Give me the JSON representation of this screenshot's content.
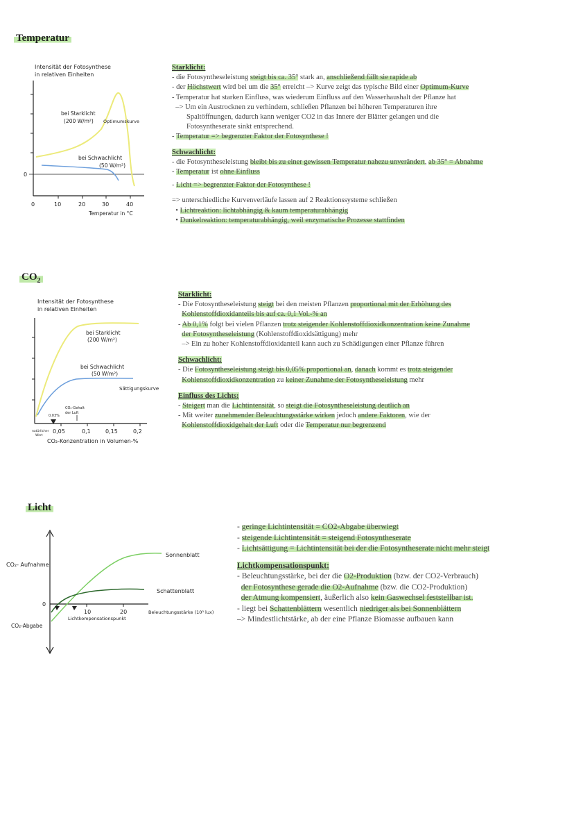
{
  "sections": {
    "temperature": {
      "heading": "Temperatur",
      "graph": {
        "ylabel_1": "Intensität der Fotosynthese",
        "ylabel_2": "in relativen Einheiten",
        "xlabel": "Temperatur in °C",
        "ticks": [
          "0",
          "10",
          "20",
          "30",
          "40"
        ],
        "zero": "0",
        "label_strong_1": "bei Starklicht",
        "label_strong_2": "(200 W/m²)",
        "label_optimum": "Optimumskurve",
        "label_weak_1": "bei Schwachlicht",
        "label_weak_2": "(50 W/m²)"
      },
      "notes": {
        "starklicht_title": "Starklicht:",
        "l1": [
          {
            "t": "- die Fotosyntheseleistung "
          },
          {
            "t": "steigt bis ca. 35°",
            "h": 1
          },
          {
            "t": " stark an, "
          },
          {
            "t": "anschließend fällt sie rapide ab",
            "h": 1
          }
        ],
        "l2": [
          {
            "t": "- der "
          },
          {
            "t": "Höchstwert",
            "h": 1
          },
          {
            "t": " wird bei um die "
          },
          {
            "t": "35°",
            "h": 1
          },
          {
            "t": " erreicht –> Kurve zeigt das typische Bild einer "
          },
          {
            "t": "Optimum-Kurve",
            "h": 1
          }
        ],
        "l3": [
          {
            "t": "- Temperatur hat starken Einfluss, was wiederum Einfluss auf den Wasserhaushalt der Pflanze hat"
          }
        ],
        "l4": [
          {
            "t": "  –> Um ein Austrocknen zu verhindern, schließen Pflanzen bei höheren Temperaturen ihre"
          }
        ],
        "l5": [
          {
            "t": "        Spaltöffnungen, dadurch kann weniger CO2 in das Innere der Blätter gelangen und die"
          }
        ],
        "l6": [
          {
            "t": "        Fotosyntheserate sinkt entsprechend."
          }
        ],
        "l7": [
          {
            "t": "- "
          },
          {
            "t": "Temperatur => begrenzter Faktor der Fotosynthese !",
            "h": 1
          }
        ],
        "schwachlicht_title": "Schwachlicht:",
        "l8": [
          {
            "t": "- die Fotosyntheseleistung "
          },
          {
            "t": "bleibt bis zu einer gewissen Temperatur nahezu unverändert",
            "h": 1
          },
          {
            "t": ", "
          },
          {
            "t": "ab 35° = Abnahme",
            "h": 1
          }
        ],
        "l9": [
          {
            "t": "- "
          },
          {
            "t": "Temperatur",
            "h": 1
          },
          {
            "t": " ist "
          },
          {
            "t": "ohne Einfluss",
            "h": 1
          }
        ],
        "l10": [
          {
            "t": "- "
          },
          {
            "t": "Licht => begrenzter Faktor der Fotosynthese !",
            "h": 1
          }
        ],
        "l11": [
          {
            "t": "=> unterschiedliche Kurvenverläufe lassen auf 2 Reaktionssysteme schließen"
          }
        ],
        "l12": [
          {
            "t": "  • "
          },
          {
            "t": "Lichtreaktion: lichtabhängig & kaum temperaturabhängig",
            "h": 1
          }
        ],
        "l13": [
          {
            "t": "  • "
          },
          {
            "t": "Dunkelreaktion: temperaturabhängig, weil enzymatische Prozesse stattfinden",
            "h": 1
          }
        ]
      }
    },
    "co2": {
      "heading": "CO",
      "heading_sub": "2",
      "graph": {
        "ylabel_1": "Intensität der Fotosynthese",
        "ylabel_2": "in relativen Einheiten",
        "xlabel": "CO₂-Konzentration in Volumen-%",
        "ticks": [
          "0,05",
          "0,1",
          "0,15",
          "0,2"
        ],
        "label_natural_1": "natürlicher",
        "label_natural_2": "Wert",
        "label_003": "0,03%",
        "label_co2air_1": "CO₂-Gehalt",
        "label_co2air_2": "der Luft",
        "label_strong_1": "bei Starklicht",
        "label_strong_2": "(200 W/m²)",
        "label_weak_1": "bei Schwachlicht",
        "label_weak_2": "(50 W/m²)",
        "label_saturation": "Sättigungskurve"
      },
      "notes": {
        "starklicht_title": "Starklicht:",
        "l1": [
          {
            "t": "- Die Fotosyntheseleistung "
          },
          {
            "t": "steigt",
            "h": 1
          },
          {
            "t": " bei den meisten Pflanzen "
          },
          {
            "t": "proportional mit der Erhöhung des",
            "h": 1
          }
        ],
        "l2": [
          {
            "t": "  "
          },
          {
            "t": "Kohlenstoffdioxidanteils bis auf ca. 0,1 Vol.-% an",
            "h": 1
          }
        ],
        "l3": [
          {
            "t": "- "
          },
          {
            "t": "Ab 0,1%",
            "h": 1
          },
          {
            "t": " folgt bei vielen Pflanzen "
          },
          {
            "t": "trotz steigender Kohlenstoffdioxidkonzentration keine Zunahme",
            "h": 1
          }
        ],
        "l4": [
          {
            "t": "  "
          },
          {
            "t": "der Fotosyntheseleistung",
            "h": 1
          },
          {
            "t": " (Kohlenstoffdioxidsättigung) mehr"
          }
        ],
        "l5": [
          {
            "t": "  –> Ein zu hoher Kohlenstoffdioxidanteil kann auch zu Schädigungen einer Pflanze führen"
          }
        ],
        "schwachlicht_title": "Schwachlicht:",
        "l6": [
          {
            "t": "- Die "
          },
          {
            "t": "Fotosyntheseleistung steigt bis 0,05% proportional an",
            "h": 1
          },
          {
            "t": ", "
          },
          {
            "t": "danach",
            "h": 1
          },
          {
            "t": " kommt es "
          },
          {
            "t": "trotz steigender",
            "h": 1
          }
        ],
        "l7": [
          {
            "t": "  "
          },
          {
            "t": "Kohlenstoffdioxidkonzentration",
            "h": 1
          },
          {
            "t": " zu "
          },
          {
            "t": "keiner Zunahme der Fotosyntheseleistung",
            "h": 1
          },
          {
            "t": " mehr"
          }
        ],
        "einfluss_title": "Einfluss des Lichts:",
        "l8": [
          {
            "t": "- "
          },
          {
            "t": "Steigert",
            "h": 1
          },
          {
            "t": " man die "
          },
          {
            "t": "Lichtintensität",
            "h": 1
          },
          {
            "t": ", so "
          },
          {
            "t": "steigt die Fotosyntheseleistung deutlich an",
            "h": 1
          }
        ],
        "l9": [
          {
            "t": "- Mit weiter "
          },
          {
            "t": "zunehmender Beleuchtungsstärke wirken",
            "h": 1
          },
          {
            "t": " jedoch "
          },
          {
            "t": "andere Faktoren",
            "h": 1
          },
          {
            "t": ", wie der"
          }
        ],
        "l10": [
          {
            "t": "  "
          },
          {
            "t": "Kohlenstoffdioxidgehalt der Luft",
            "h": 1
          },
          {
            "t": " oder die "
          },
          {
            "t": "Temperatur nur begrenzend",
            "h": 1
          }
        ]
      }
    },
    "light": {
      "heading": "Licht",
      "graph": {
        "label_uptake": "CO₂- Aufnahme",
        "label_release": "CO₂-Abgabe",
        "zero": "0",
        "tick_10": "10",
        "tick_20": "20",
        "xlabel": "Beleuchtungsstärke (10³ lux)",
        "label_comp": "Lichtkompensationspunkt",
        "label_sun": "Sonnenblatt",
        "label_shade": "Schattenblatt"
      },
      "notes": {
        "l1": [
          {
            "t": "- "
          },
          {
            "t": "geringe Lichtintensität = CO2-Abgabe überwiegt",
            "h": 1
          }
        ],
        "l2": [
          {
            "t": "- "
          },
          {
            "t": "steigende Lichtintensität = steigend Fotosyntheserate",
            "h": 1
          }
        ],
        "l3": [
          {
            "t": "- "
          },
          {
            "t": "Lichtsättigung = Lichtintensität bei der die Fotosyntheserate nicht mehr steigt",
            "h": 1
          }
        ],
        "komp_title": "Lichtkompensationspunkt:",
        "l4": [
          {
            "t": "- Beleuchtungsstärke, bei der die "
          },
          {
            "t": "O2-Produktion",
            "h": 1
          },
          {
            "t": " (bzw. der CO2-Verbrauch)"
          }
        ],
        "l5": [
          {
            "t": "  "
          },
          {
            "t": "der Fotosynthese gerade die O2-Aufnahme",
            "h": 1
          },
          {
            "t": " (bzw. die CO2-Produktion)"
          }
        ],
        "l6": [
          {
            "t": "  "
          },
          {
            "t": "der Atmung kompensiert",
            "h": 1
          },
          {
            "t": ", äußerlich also "
          },
          {
            "t": "kein Gaswechsel feststellbar ist.",
            "h": 1
          }
        ],
        "l7": [
          {
            "t": "- liegt bei "
          },
          {
            "t": "Schattenblättern",
            "h": 1
          },
          {
            "t": " wesentlich "
          },
          {
            "t": "niedriger als bei Sonnenblättern",
            "h": 1
          }
        ],
        "l8": [
          {
            "t": "–> Mindestlichtstärke, ab der eine Pflanze Biomasse aufbauen kann"
          }
        ]
      }
    }
  },
  "colors": {
    "yellow_curve": "#ecea7a",
    "blue_curve": "#6d9fdc",
    "green_curve": "#7ccf64",
    "dark_curve": "#2f6a2f",
    "highlight": "#c6eab0"
  }
}
